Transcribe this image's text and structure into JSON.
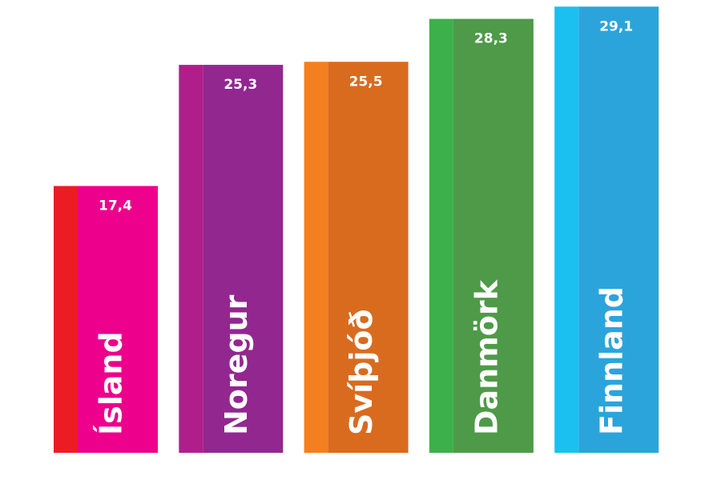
{
  "chart_data": {
    "type": "bar",
    "categories": [
      "Ísland",
      "Noregur",
      "Svíþjóð",
      "Danmörk",
      "Finnland"
    ],
    "values": [
      17.4,
      25.3,
      25.5,
      28.3,
      29.1
    ],
    "value_labels": [
      "17,4",
      "25,3",
      "25,5",
      "28,3",
      "29,1"
    ],
    "colors": [
      "#ec008c",
      "#92278f",
      "#d96b1f",
      "#4e9a48",
      "#2ba4dc"
    ],
    "accent_colors": [
      "#ec1c24",
      "#b01e8c",
      "#f47f20",
      "#3cb04a",
      "#1bc0f0"
    ],
    "ylim": [
      0,
      30
    ]
  }
}
